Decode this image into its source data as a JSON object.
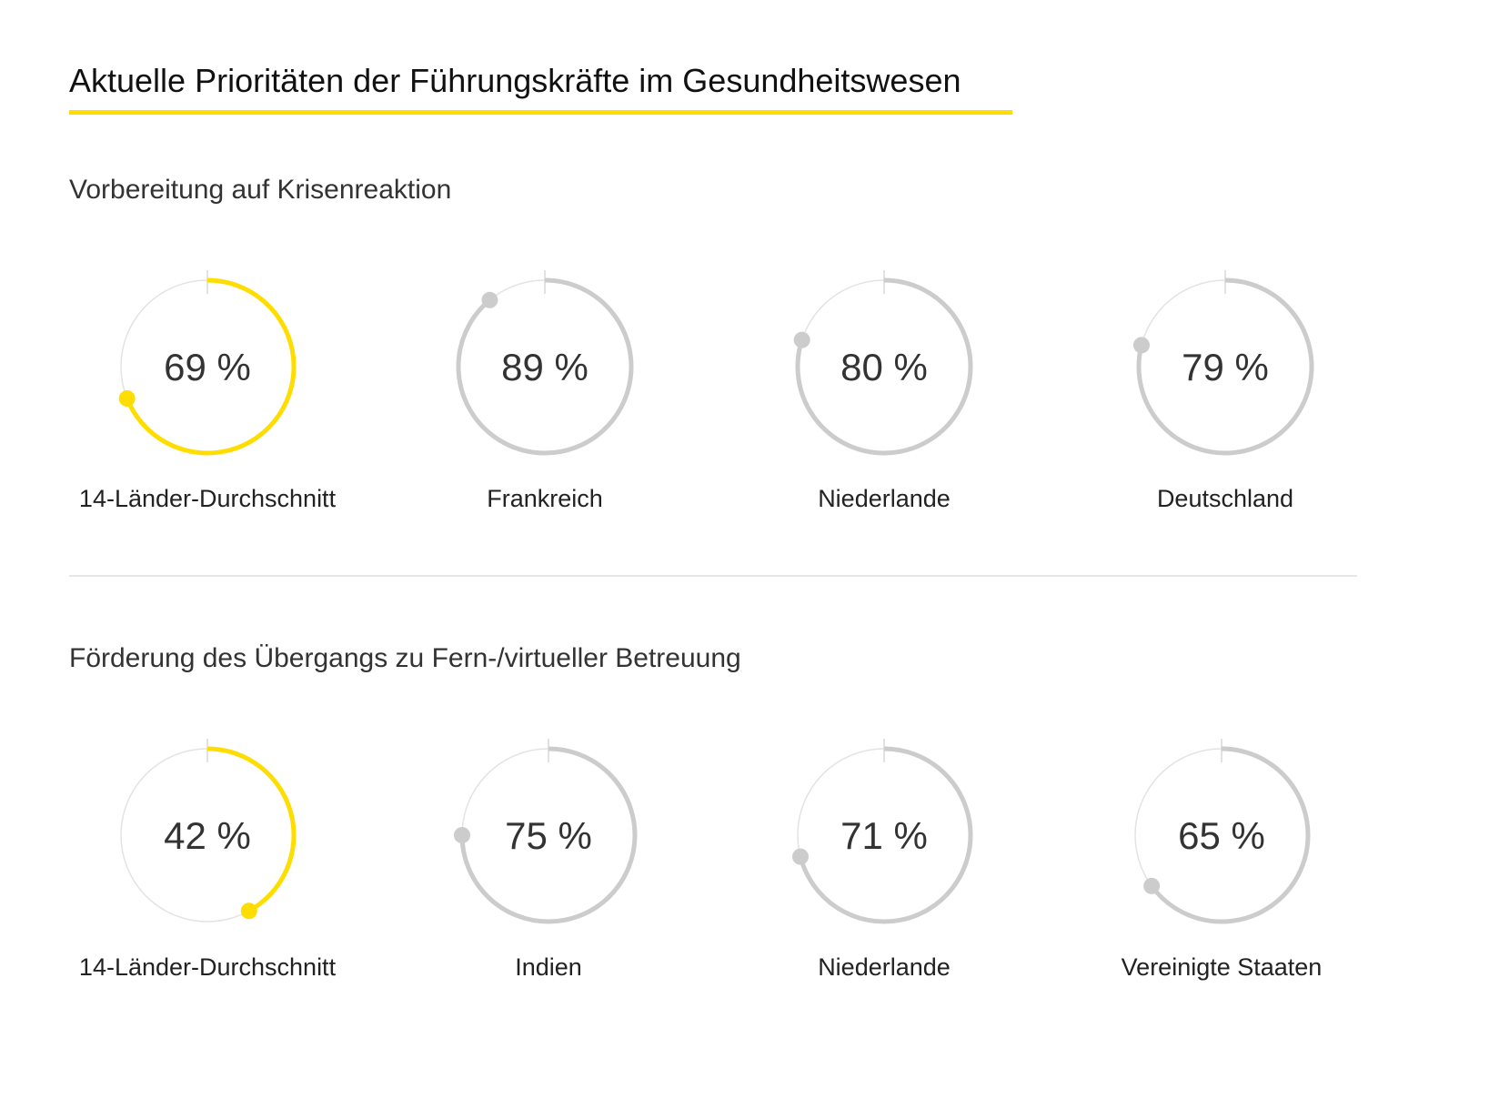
{
  "title": "Aktuelle Prioritäten der Führungskräfte im Gesundheitswesen",
  "colors": {
    "highlight": "#ffdd00",
    "other": "#cccccc",
    "track": "#e3e3e3"
  },
  "chart_data": [
    {
      "type": "donut-gauge",
      "title": "Vorbereitung auf Krisenreaktion",
      "unit": "%",
      "categories": [
        "14-Länder-Durchschnitt",
        "Frankreich",
        "Niederlande",
        "Deutschland"
      ],
      "values": [
        69,
        89,
        80,
        79
      ],
      "highlighted": "14-Länder-Durchschnitt"
    },
    {
      "type": "donut-gauge",
      "title": "Förderung des Übergangs zu Fern-/virtueller Betreuung",
      "unit": "%",
      "categories": [
        "14-Länder-Durchschnitt",
        "Indien",
        "Niederlande",
        "Vereinigte Staaten"
      ],
      "values": [
        42,
        75,
        71,
        65
      ],
      "highlighted": "14-Länder-Durchschnitt"
    }
  ]
}
